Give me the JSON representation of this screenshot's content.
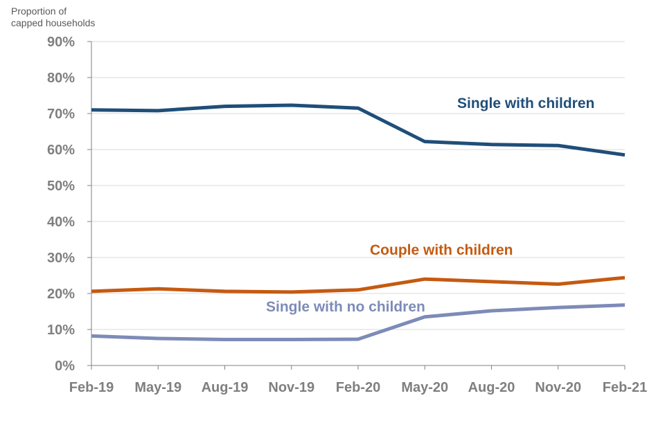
{
  "chart_data": {
    "type": "line",
    "ylabel_lines": [
      "Proportion of",
      "capped households"
    ],
    "x": [
      "Feb-19",
      "May-19",
      "Aug-19",
      "Nov-19",
      "Feb-20",
      "May-20",
      "Aug-20",
      "Nov-20",
      "Feb-21"
    ],
    "y_ticks": [
      "0%",
      "10%",
      "20%",
      "30%",
      "40%",
      "50%",
      "60%",
      "70%",
      "80%",
      "90%"
    ],
    "ylim": [
      0,
      90
    ],
    "grid": true,
    "series": [
      {
        "name": "Single with children",
        "color": "#1f4e79",
        "values": [
          71,
          70.8,
          72,
          72.3,
          71.5,
          62.2,
          61.4,
          61.1,
          58.5
        ]
      },
      {
        "name": "Couple with children",
        "color": "#c55a11",
        "values": [
          20.6,
          21.3,
          20.6,
          20.4,
          21,
          24,
          23.3,
          22.6,
          24.4
        ]
      },
      {
        "name": "Single with no children",
        "color": "#7d8bb8",
        "values": [
          8.2,
          7.5,
          7.2,
          7.2,
          7.3,
          13.5,
          15.2,
          16.1,
          16.8
        ]
      }
    ]
  }
}
